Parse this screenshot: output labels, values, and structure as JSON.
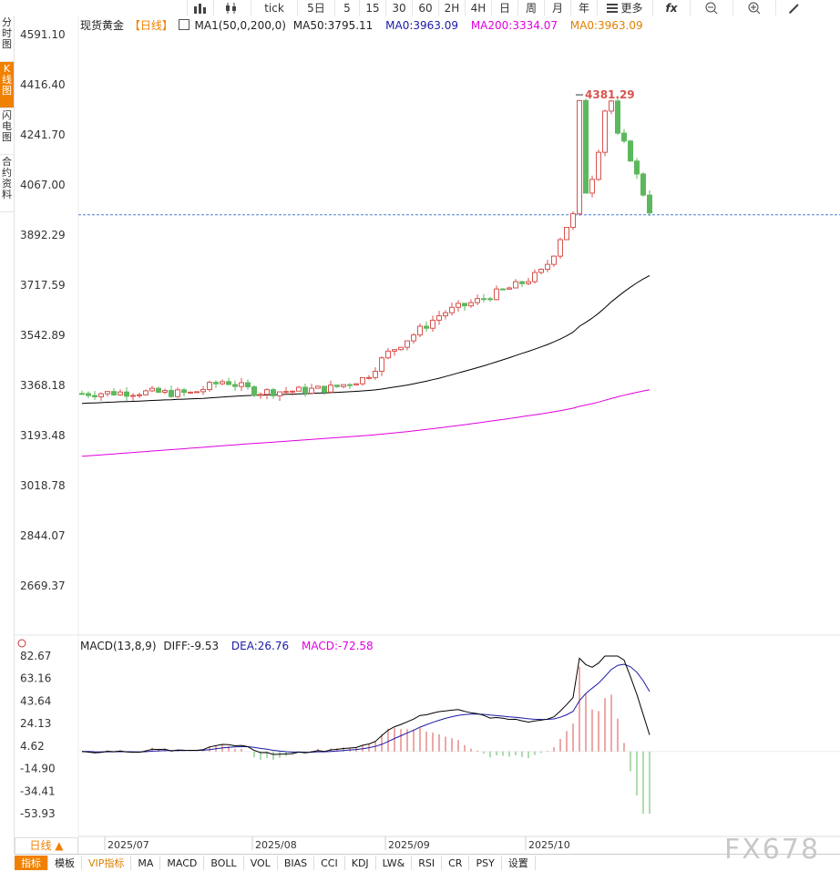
{
  "toolbar": {
    "periods": [
      "tick",
      "5日",
      "5",
      "15",
      "30",
      "60",
      "2H",
      "4H",
      "日",
      "周",
      "月",
      "年"
    ],
    "more_label": "更多",
    "fx_label": "fx"
  },
  "leftnav": [
    "分时图",
    "K线图",
    "闪电图",
    "合约资料"
  ],
  "main_legend": {
    "title": "现货黄金",
    "period": "【日线】",
    "ma_name": "MA1(50,0,200,0)",
    "ma50": "MA50:3795.11",
    "ma0_a": "MA0:3963.09",
    "ma200": "MA200:3334.07",
    "ma0_b": "MA0:3963.09"
  },
  "macd_legend": {
    "name": "MACD(13,8,9)",
    "diff": "DIFF:-9.53",
    "dea": "DEA:26.76",
    "macd": "MACD:-72.58"
  },
  "colors": {
    "up": "#d9534f",
    "down": "#5cb85c",
    "ma50": "#000000",
    "ma200": "#e000e0",
    "ma0": "#e08000",
    "dea": "#1a1aa6",
    "macd": "#e000e0",
    "accent": "#f08000"
  },
  "peak_label": "4381.29",
  "bottom_tag": "日线 ▲",
  "bottombar": [
    "指标",
    "模板",
    "VIP指标",
    "MA",
    "MACD",
    "BOLL",
    "VOL",
    "BIAS",
    "CCI",
    "KDJ",
    "LW&",
    "RSI",
    "CR",
    "PSY",
    "设置"
  ],
  "watermark": "FX678",
  "chart_data": {
    "type": "candlestick",
    "price_axis_ticks": [
      4591.1,
      4416.4,
      4241.7,
      4067.0,
      3892.29,
      3717.59,
      3542.89,
      3368.18,
      3193.48,
      3018.78,
      2844.07,
      2669.37
    ],
    "macd_axis_ticks": [
      82.67,
      63.16,
      43.64,
      24.13,
      4.62,
      -14.9,
      -34.41,
      -53.93
    ],
    "x_ticks": [
      "2025/07",
      "2025/08",
      "2025/09",
      "2025/10"
    ],
    "current_price": 3963.09,
    "peak": 4381.29,
    "ma50_last": 3795.11,
    "ma200_last": 3334.07,
    "diff_last": -9.53,
    "dea_last": 26.76,
    "macd_last": -72.58
  }
}
